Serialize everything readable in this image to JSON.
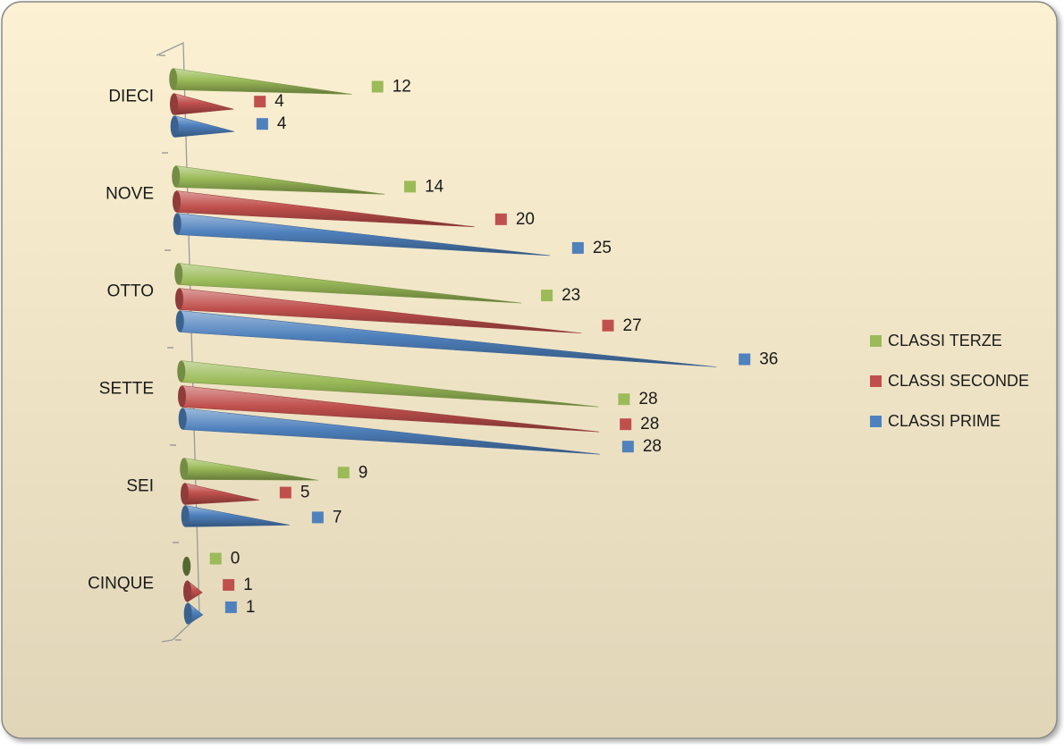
{
  "chart_data": {
    "type": "bar",
    "orientation": "horizontal",
    "style": "3d-cone",
    "categories": [
      "DIECI",
      "NOVE",
      "OTTO",
      "SETTE",
      "SEI",
      "CINQUE"
    ],
    "series": [
      {
        "name": "CLASSI TERZE",
        "color": "#9BBB59",
        "values": [
          12,
          14,
          23,
          28,
          9,
          0
        ]
      },
      {
        "name": "CLASSI SECONDE",
        "color": "#C0504D",
        "values": [
          4,
          20,
          27,
          28,
          5,
          1
        ]
      },
      {
        "name": "CLASSI PRIME",
        "color": "#4F81BD",
        "values": [
          4,
          25,
          36,
          28,
          7,
          1
        ]
      }
    ],
    "title": "",
    "xlabel": "",
    "ylabel": "",
    "xlim": [
      0,
      36
    ],
    "grid": false,
    "data_labels": true,
    "legend": {
      "position": "right",
      "order": [
        "CLASSI TERZE",
        "CLASSI SECONDE",
        "CLASSI PRIME"
      ]
    },
    "background": {
      "gradient_top": "#FCF1D2",
      "gradient_bottom": "#E1D5B8",
      "border": "#8A8A8A"
    }
  }
}
